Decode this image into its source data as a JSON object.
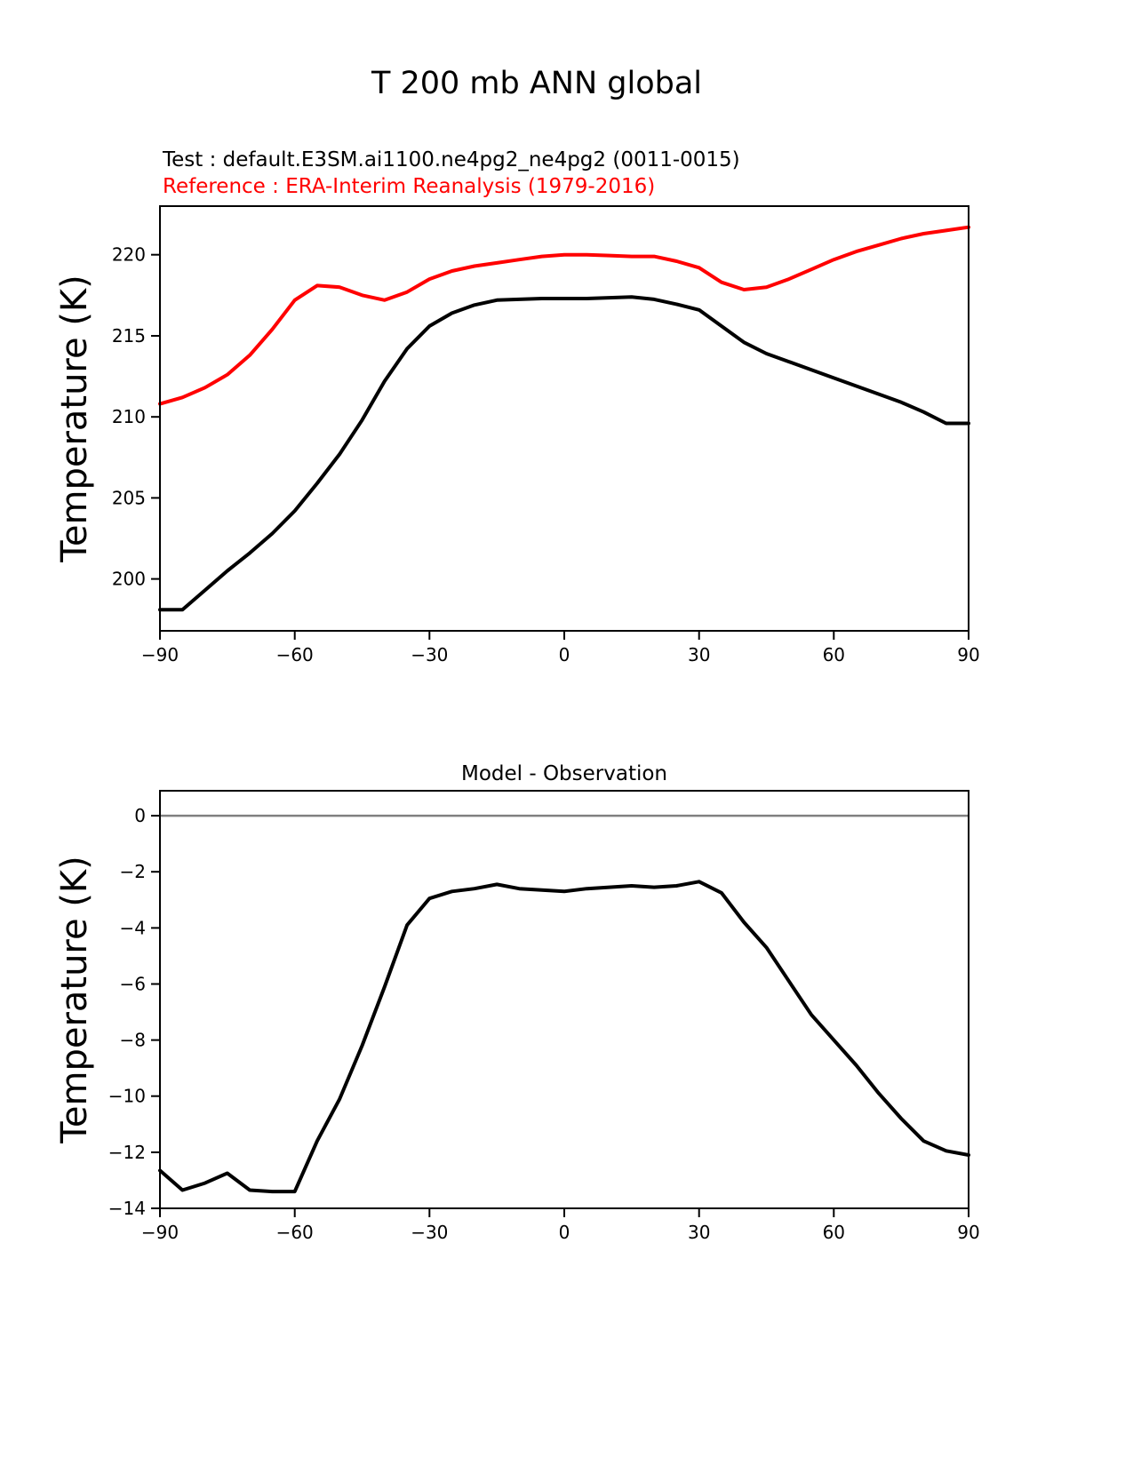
{
  "page_title": "T 200 mb ANN global",
  "legend": {
    "test_label": "Test : default.E3SM.ai1100.ne4pg2_ne4pg2 (0011-0015)",
    "reference_label": "Reference : ERA-Interim Reanalysis (1979-2016)"
  },
  "colors": {
    "test": "#000000",
    "reference": "#ff0000",
    "zero_line": "#808080",
    "axis": "#000000"
  },
  "chart_data": [
    {
      "type": "line",
      "title": "",
      "xlabel": "",
      "ylabel": "Temperature (K)",
      "xlim": [
        -90,
        90
      ],
      "ylim": [
        196.8,
        223.0
      ],
      "xticks": [
        -90,
        -60,
        -30,
        0,
        30,
        60,
        90
      ],
      "yticks": [
        200,
        205,
        210,
        215,
        220
      ],
      "grid": false,
      "legend_position": "above-left",
      "x": [
        -90,
        -85,
        -80,
        -75,
        -70,
        -65,
        -60,
        -55,
        -50,
        -45,
        -40,
        -35,
        -30,
        -25,
        -20,
        -15,
        -10,
        -5,
        0,
        5,
        10,
        15,
        20,
        25,
        30,
        35,
        40,
        45,
        50,
        55,
        60,
        65,
        70,
        75,
        80,
        85,
        90
      ],
      "series": [
        {
          "name": "Test",
          "color": "#000000",
          "values": [
            198.1,
            198.1,
            199.3,
            200.5,
            201.6,
            202.8,
            204.2,
            205.9,
            207.7,
            209.8,
            212.2,
            214.2,
            215.6,
            216.4,
            216.9,
            217.2,
            217.25,
            217.3,
            217.3,
            217.3,
            217.35,
            217.4,
            217.25,
            216.95,
            216.6,
            215.6,
            214.6,
            213.9,
            213.4,
            212.9,
            212.4,
            211.9,
            211.4,
            210.9,
            210.3,
            209.6,
            209.6
          ]
        },
        {
          "name": "Reference",
          "color": "#ff0000",
          "values": [
            210.8,
            211.2,
            211.8,
            212.6,
            213.8,
            215.4,
            217.2,
            218.1,
            218.0,
            217.5,
            217.2,
            217.7,
            218.5,
            219.0,
            219.3,
            219.5,
            219.7,
            219.9,
            220.0,
            220.0,
            219.95,
            219.9,
            219.9,
            219.6,
            219.2,
            218.3,
            217.85,
            218.0,
            218.5,
            219.1,
            219.7,
            220.2,
            220.6,
            221.0,
            221.3,
            221.5,
            221.7
          ]
        }
      ]
    },
    {
      "type": "line",
      "title": "Model - Observation",
      "xlabel": "",
      "ylabel": "Temperature (K)",
      "xlim": [
        -90,
        90
      ],
      "ylim": [
        -14,
        0.89
      ],
      "xticks": [
        -90,
        -60,
        -30,
        0,
        30,
        60,
        90
      ],
      "yticks": [
        0,
        -2,
        -4,
        -6,
        -8,
        -10,
        -12,
        -14
      ],
      "grid": false,
      "zero_line": true,
      "x": [
        -90,
        -85,
        -80,
        -75,
        -70,
        -65,
        -60,
        -55,
        -50,
        -45,
        -40,
        -35,
        -30,
        -25,
        -20,
        -15,
        -10,
        -5,
        0,
        5,
        10,
        15,
        20,
        25,
        30,
        35,
        40,
        45,
        50,
        55,
        60,
        65,
        70,
        75,
        80,
        85,
        90
      ],
      "series": [
        {
          "name": "Model - Observation",
          "color": "#000000",
          "values": [
            -12.65,
            -13.35,
            -13.1,
            -12.75,
            -13.35,
            -13.4,
            -13.4,
            -11.6,
            -10.1,
            -8.2,
            -6.1,
            -3.9,
            -2.95,
            -2.7,
            -2.6,
            -2.45,
            -2.6,
            -2.65,
            -2.7,
            -2.6,
            -2.55,
            -2.5,
            -2.55,
            -2.5,
            -2.35,
            -2.75,
            -3.8,
            -4.7,
            -5.9,
            -7.1,
            -8.0,
            -8.9,
            -9.9,
            -10.8,
            -11.6,
            -11.95,
            -12.1
          ]
        }
      ]
    }
  ]
}
